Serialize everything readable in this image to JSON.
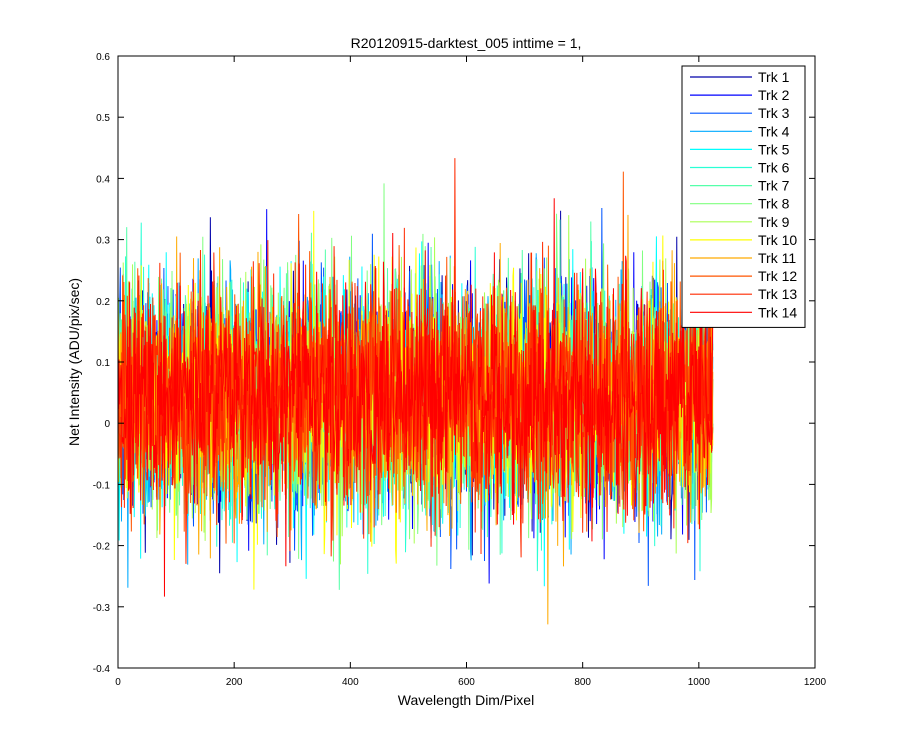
{
  "chart_data": {
    "type": "line",
    "title": "R20120915-darktest_005 inttime = 1,",
    "xlabel": "Wavelength Dim/Pixel",
    "ylabel": "Net Intensity (ADU/pix/sec)",
    "xlim": [
      0,
      1200
    ],
    "ylim": [
      -0.4,
      0.6
    ],
    "xticks": [
      0,
      200,
      400,
      600,
      800,
      1000,
      1200
    ],
    "yticks": [
      -0.4,
      -0.3,
      -0.2,
      -0.1,
      0,
      0.1,
      0.2,
      0.3,
      0.4,
      0.5,
      0.6
    ],
    "xtick_labels": [
      "0",
      "200",
      "400",
      "600",
      "800",
      "1000",
      "1200"
    ],
    "ytick_labels": [
      "-0.4",
      "-0.3",
      "-0.2",
      "-0.1",
      "0",
      "0.1",
      "0.2",
      "0.3",
      "0.4",
      "0.5",
      "0.6"
    ],
    "grid": false,
    "legend_position": "top-right",
    "x_range": [
      0,
      1024
    ],
    "noise_model": {
      "center": 0.04,
      "spread": 0.09,
      "min": -0.4,
      "max": 0.52
    },
    "series": [
      {
        "name": "Trk 1",
        "color": "#0000AA"
      },
      {
        "name": "Trk 2",
        "color": "#0000FF"
      },
      {
        "name": "Trk 3",
        "color": "#0055FF"
      },
      {
        "name": "Trk 4",
        "color": "#00AAFF"
      },
      {
        "name": "Trk 5",
        "color": "#00FFFF"
      },
      {
        "name": "Trk 6",
        "color": "#2AFFD5"
      },
      {
        "name": "Trk 7",
        "color": "#55FFAA"
      },
      {
        "name": "Trk 8",
        "color": "#80FF80"
      },
      {
        "name": "Trk 9",
        "color": "#AAFF55"
      },
      {
        "name": "Trk 10",
        "color": "#FFFF00"
      },
      {
        "name": "Trk 11",
        "color": "#FFAA00"
      },
      {
        "name": "Trk 12",
        "color": "#FF5500"
      },
      {
        "name": "Trk 13",
        "color": "#FF2A00"
      },
      {
        "name": "Trk 14",
        "color": "#FF0000"
      }
    ]
  }
}
